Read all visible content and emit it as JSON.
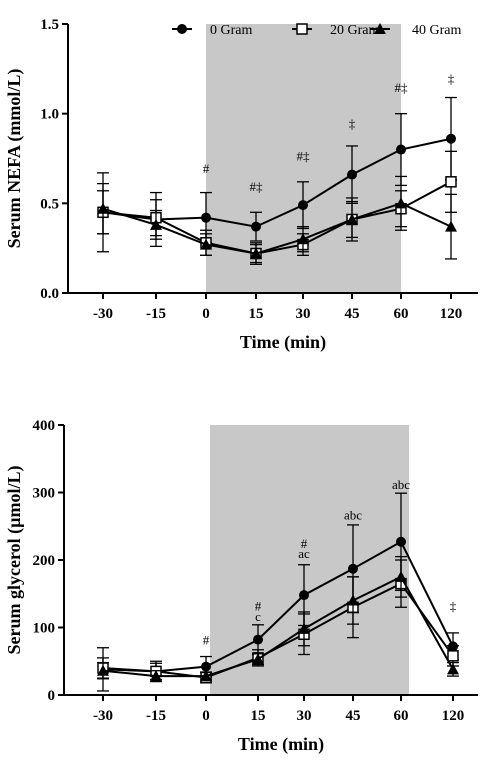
{
  "chart_data": [
    {
      "type": "line",
      "title": "",
      "xlabel": "Time (min)",
      "ylabel": "Serum NEFA (mmol/L)",
      "categories": [
        "-30",
        "-15",
        "0",
        "15",
        "30",
        "45",
        "60",
        "120"
      ],
      "ylim": [
        0,
        1.5
      ],
      "yticks": [
        "0.0",
        "0.5",
        "1.0",
        "1.5"
      ],
      "ytick_values": [
        0,
        0.5,
        1.0,
        1.5
      ],
      "shaded_region": [
        "0",
        "60"
      ],
      "legend_position": "top-right",
      "series": [
        {
          "name": "0 Gram",
          "marker": "circle",
          "values": [
            0.45,
            0.41,
            0.42,
            0.37,
            0.49,
            0.66,
            0.8,
            0.86
          ],
          "errors": [
            0.22,
            0.15,
            0.14,
            0.08,
            0.13,
            0.16,
            0.2,
            0.23
          ]
        },
        {
          "name": "20 Gram",
          "marker": "square",
          "values": [
            0.45,
            0.42,
            0.28,
            0.22,
            0.27,
            0.41,
            0.47,
            0.62
          ],
          "errors": [
            0.12,
            0.1,
            0.07,
            0.06,
            0.06,
            0.12,
            0.1,
            0.17
          ]
        },
        {
          "name": "40 Gram",
          "marker": "triangle",
          "values": [
            0.47,
            0.38,
            0.27,
            0.22,
            0.3,
            0.41,
            0.5,
            0.37
          ],
          "errors": [
            0.14,
            0.08,
            0.06,
            0.05,
            0.07,
            0.1,
            0.15,
            0.18
          ]
        }
      ],
      "annotations": [
        {
          "category": "0",
          "text": "#",
          "y": 0.67
        },
        {
          "category": "15",
          "text": "#‡",
          "y": 0.57
        },
        {
          "category": "30",
          "text": "#‡",
          "y": 0.74
        },
        {
          "category": "45",
          "text": "‡",
          "y": 0.92
        },
        {
          "category": "60",
          "text": "#‡",
          "y": 1.12
        },
        {
          "category": "120",
          "text": "‡",
          "y": 1.17
        }
      ]
    },
    {
      "type": "line",
      "title": "",
      "xlabel": "Time (min)",
      "ylabel": "Serum glycerol (µmol/L)",
      "categories": [
        "-30",
        "-15",
        "0",
        "15",
        "30",
        "45",
        "60",
        "120"
      ],
      "ylim": [
        0,
        400
      ],
      "yticks": [
        "0",
        "100",
        "200",
        "300",
        "400"
      ],
      "ytick_values": [
        0,
        100,
        200,
        300,
        400
      ],
      "shaded_region": [
        "0",
        "60"
      ],
      "series": [
        {
          "name": "0 Gram",
          "marker": "circle",
          "values": [
            38,
            35,
            42,
            82,
            148,
            187,
            227,
            72
          ],
          "errors": [
            32,
            15,
            15,
            22,
            45,
            65,
            72,
            20
          ]
        },
        {
          "name": "20 Gram",
          "marker": "square",
          "values": [
            40,
            35,
            26,
            55,
            90,
            130,
            165,
            58
          ],
          "errors": [
            15,
            12,
            8,
            12,
            30,
            45,
            35,
            15
          ]
        },
        {
          "name": "40 Gram",
          "marker": "triangle",
          "values": [
            36,
            28,
            28,
            53,
            98,
            140,
            175,
            38
          ],
          "errors": [
            12,
            8,
            6,
            8,
            25,
            35,
            30,
            10
          ]
        }
      ],
      "annotations": [
        {
          "category": "0",
          "text": "#",
          "y": 75
        },
        {
          "category": "15",
          "text": "#",
          "y": 125
        },
        {
          "category": "15",
          "text": "c",
          "y": 110
        },
        {
          "category": "30",
          "text": "#",
          "y": 218
        },
        {
          "category": "30",
          "text": "ac",
          "y": 203
        },
        {
          "category": "45",
          "text": "abc",
          "y": 260
        },
        {
          "category": "60",
          "text": "abc",
          "y": 305
        },
        {
          "category": "120",
          "text": "‡",
          "y": 125
        }
      ]
    }
  ]
}
